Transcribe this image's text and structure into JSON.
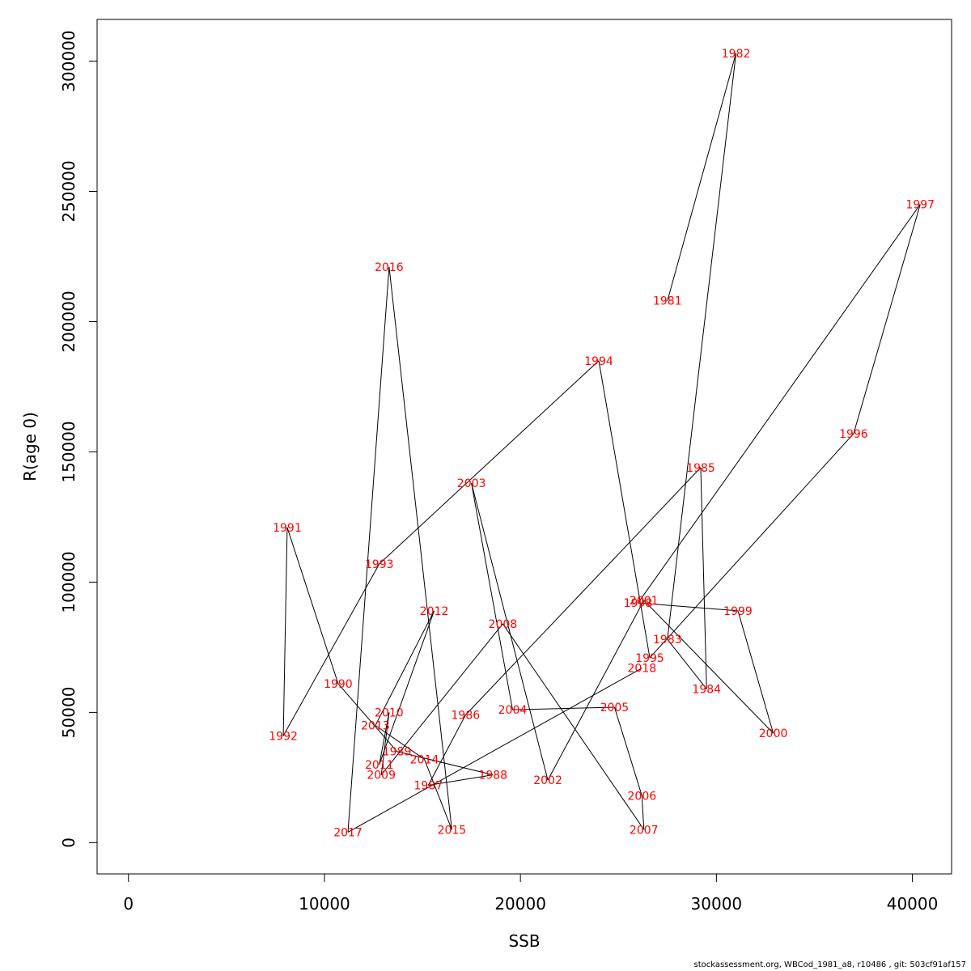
{
  "chart_data": {
    "type": "scatter",
    "connected": true,
    "xlabel": "SSB",
    "ylabel": "R(age 0)",
    "xlim": [
      -1600,
      42000
    ],
    "ylim": [
      -12000,
      316000
    ],
    "x_ticks": [
      0,
      10000,
      20000,
      30000,
      40000
    ],
    "y_ticks": [
      0,
      50000,
      100000,
      150000,
      200000,
      250000,
      300000
    ],
    "x_tick_labels": [
      "0",
      "10000",
      "20000",
      "30000",
      "40000"
    ],
    "y_tick_labels": [
      "0",
      "50000",
      "100000",
      "150000",
      "200000",
      "250000",
      "300000"
    ],
    "line_color": "#000000",
    "label_color": "#ff0000",
    "points": [
      {
        "year": "1981",
        "x": 27500,
        "y": 208000
      },
      {
        "year": "1982",
        "x": 31000,
        "y": 303000
      },
      {
        "year": "1983",
        "x": 27500,
        "y": 78000
      },
      {
        "year": "1984",
        "x": 29500,
        "y": 59000
      },
      {
        "year": "1985",
        "x": 29200,
        "y": 144000
      },
      {
        "year": "1986",
        "x": 17200,
        "y": 49000
      },
      {
        "year": "1987",
        "x": 15300,
        "y": 22000
      },
      {
        "year": "1988",
        "x": 18600,
        "y": 26000
      },
      {
        "year": "1989",
        "x": 13700,
        "y": 35000
      },
      {
        "year": "1990",
        "x": 10700,
        "y": 61000
      },
      {
        "year": "1991",
        "x": 8100,
        "y": 121000
      },
      {
        "year": "1992",
        "x": 7900,
        "y": 41000
      },
      {
        "year": "1993",
        "x": 12800,
        "y": 107000
      },
      {
        "year": "1994",
        "x": 24000,
        "y": 185000
      },
      {
        "year": "1995",
        "x": 26600,
        "y": 71000
      },
      {
        "year": "1996",
        "x": 37000,
        "y": 157000
      },
      {
        "year": "1997",
        "x": 40400,
        "y": 245000
      },
      {
        "year": "1998",
        "x": 26000,
        "y": 92000
      },
      {
        "year": "1999",
        "x": 31100,
        "y": 89000
      },
      {
        "year": "2000",
        "x": 32900,
        "y": 42000
      },
      {
        "year": "2001",
        "x": 26300,
        "y": 93000
      },
      {
        "year": "2002",
        "x": 21400,
        "y": 24000
      },
      {
        "year": "2003",
        "x": 17500,
        "y": 138000
      },
      {
        "year": "2004",
        "x": 19600,
        "y": 51000
      },
      {
        "year": "2005",
        "x": 24800,
        "y": 52000
      },
      {
        "year": "2006",
        "x": 26200,
        "y": 18000
      },
      {
        "year": "2007",
        "x": 26300,
        "y": 5000
      },
      {
        "year": "2008",
        "x": 19100,
        "y": 84000
      },
      {
        "year": "2009",
        "x": 12900,
        "y": 26000
      },
      {
        "year": "2010",
        "x": 13300,
        "y": 50000
      },
      {
        "year": "2011",
        "x": 12800,
        "y": 30000
      },
      {
        "year": "2012",
        "x": 15600,
        "y": 89000
      },
      {
        "year": "2013",
        "x": 12600,
        "y": 45000
      },
      {
        "year": "2014",
        "x": 15100,
        "y": 32000
      },
      {
        "year": "2015",
        "x": 16500,
        "y": 5000
      },
      {
        "year": "2016",
        "x": 13300,
        "y": 221000
      },
      {
        "year": "2017",
        "x": 11200,
        "y": 4000
      },
      {
        "year": "2018",
        "x": 26200,
        "y": 67000
      }
    ]
  },
  "footer": {
    "credit": "stockassessment.org, WBCod_1981_a8, r10486 , git: 503cf91af157"
  }
}
